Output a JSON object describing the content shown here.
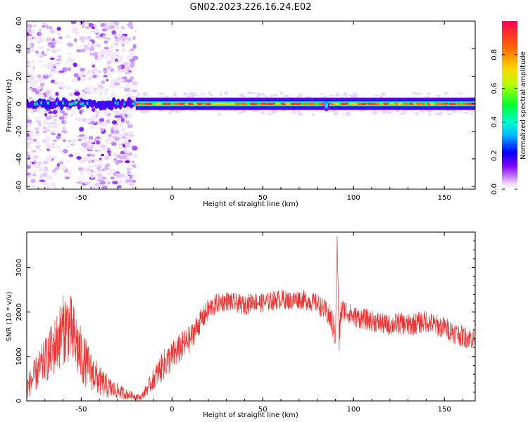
{
  "figure": {
    "title": "GN02.2023.226.16.24.E02"
  },
  "chart_data": [
    {
      "type": "heatmap",
      "xlabel": "Height of straight line (km)",
      "ylabel": "Frequency (Hz)",
      "xlim": [
        -80,
        167
      ],
      "ylim": [
        -62,
        60
      ],
      "xticks": [
        "-50",
        "0",
        "50",
        "100",
        "150"
      ],
      "yticks": [
        "-60",
        "-40",
        "-20",
        "0",
        "20",
        "40",
        "60"
      ],
      "colorbar": {
        "label": "Normalized spectral amplitude",
        "range": [
          0,
          1
        ],
        "ticks": [
          "0.0",
          "0.2",
          "0.4",
          "0.6",
          "0.8"
        ],
        "colors": [
          "#ffffff",
          "#e7c8ff",
          "#8f00ff",
          "#0000ff",
          "#00c8ff",
          "#00ff60",
          "#c8ff00",
          "#ffd000",
          "#ff7000",
          "#ff0040"
        ]
      },
      "features": {
        "noisy_region_km": [
          -80,
          -20
        ],
        "band_center_hz": 0,
        "band_halfwidth_hz": 4,
        "strong_band_km": [
          -20,
          167
        ],
        "disturbance_km": 85
      }
    },
    {
      "type": "line",
      "xlabel": "Height of straight line (km)",
      "ylabel": "SNR (10 * v/v)",
      "xlim": [
        -80,
        167
      ],
      "ylim": [
        0,
        3800
      ],
      "xticks": [
        "-50",
        "0",
        "50",
        "100",
        "150"
      ],
      "yticks": [
        "0",
        "1000",
        "2000",
        "3000"
      ],
      "series": [
        {
          "color": "#ee3333",
          "x": [
            -80,
            -75,
            -70,
            -65,
            -60,
            -57,
            -55,
            -50,
            -45,
            -40,
            -35,
            -30,
            -25,
            -20,
            -17,
            -15,
            -10,
            -5,
            0,
            5,
            10,
            15,
            20,
            25,
            30,
            35,
            40,
            45,
            50,
            55,
            60,
            65,
            70,
            75,
            80,
            85,
            88,
            90,
            91,
            92,
            93,
            95,
            100,
            105,
            110,
            115,
            120,
            125,
            130,
            135,
            140,
            145,
            150,
            155,
            160,
            167
          ],
          "values": [
            300,
            600,
            900,
            1200,
            1600,
            1700,
            1500,
            1000,
            700,
            450,
            300,
            220,
            150,
            100,
            80,
            200,
            500,
            800,
            1000,
            1200,
            1400,
            1750,
            2050,
            2200,
            2250,
            2200,
            2150,
            2250,
            2200,
            2250,
            2300,
            2250,
            2300,
            2250,
            2200,
            2000,
            1800,
            1500,
            3600,
            1300,
            2000,
            2050,
            1900,
            1850,
            1800,
            1750,
            1700,
            1750,
            1700,
            1750,
            1800,
            1700,
            1650,
            1550,
            1450,
            1400
          ],
          "noise_amplitude": [
            250,
            400,
            500,
            650,
            800,
            850,
            800,
            650,
            450,
            350,
            250,
            180,
            120,
            80,
            60,
            120,
            250,
            350,
            350,
            350,
            300,
            280,
            250,
            230,
            220,
            220,
            220,
            220,
            220,
            220,
            220,
            220,
            220,
            220,
            220,
            250,
            300,
            350,
            200,
            350,
            300,
            250,
            240,
            240,
            240,
            240,
            240,
            250,
            250,
            250,
            250,
            250,
            250,
            250,
            250,
            250
          ]
        }
      ]
    }
  ]
}
